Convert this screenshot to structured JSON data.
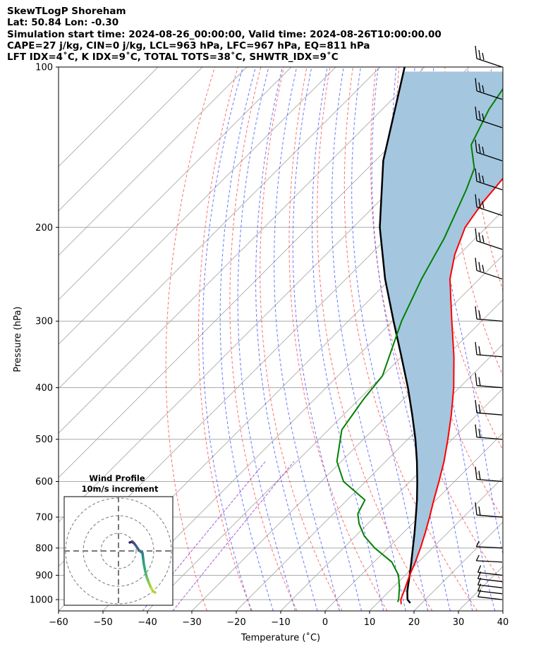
{
  "header": {
    "line1": "SkewTLogP Shoreham",
    "line2": "Lat: 50.84   Lon: -0.30",
    "line3": "Simulation start time: 2024-08-26_00:00:00, Valid time: 2024-08-26T10:00:00.00",
    "line4": "CAPE=27 j/kg, CIN=0 j/kg, LCL=963 hPa, LFC=967 hPa, EQ=811 hPa",
    "line5": "LFT IDX=4˚C, K IDX=9˚C, TOTAL TOTS=38˚C, SHWTR_IDX=9˚C"
  },
  "chart_data": {
    "type": "line",
    "xlabel": "Temperature (˚C)",
    "ylabel": "Pressure (hPa)",
    "xlim": [
      -60,
      40
    ],
    "ylim": [
      1050,
      100
    ],
    "yscale": "log",
    "skew_deg": 45,
    "x_ticks": [
      -60,
      -50,
      -40,
      -30,
      -20,
      -10,
      0,
      10,
      20,
      30,
      40
    ],
    "y_ticks": [
      1000,
      900,
      800,
      700,
      600,
      500,
      400,
      300,
      200,
      100
    ],
    "grid": true,
    "colors": {
      "temperature": "#ff0000",
      "dewpoint": "#008000",
      "parcel": "#000000",
      "cape_fill": "#a4c6df",
      "dry_adiabats": "#ff4040",
      "moist_adiabats": "#3a4cff",
      "mixing_ratio": "#9a40d0",
      "isotherms": "#aaaaaa"
    },
    "series": [
      {
        "key": "temperature",
        "p": [
          1020,
          1000,
          950,
          900,
          850,
          800,
          750,
          700,
          650,
          600,
          550,
          500,
          450,
          400,
          350,
          300,
          250,
          225,
          200,
          180,
          160,
          140,
          120,
          100
        ],
        "t": [
          15.6,
          14.5,
          12.8,
          11.0,
          9.3,
          7.3,
          5.0,
          2.4,
          -0.5,
          -3.5,
          -6.9,
          -11.0,
          -15.7,
          -21.3,
          -28.2,
          -36.7,
          -46.6,
          -51.0,
          -54.8,
          -56.4,
          -57.4,
          -58.0,
          -60.0,
          -62.7
        ]
      },
      {
        "key": "dewpoint",
        "p": [
          1010,
          1000,
          950,
          900,
          850,
          800,
          760,
          720,
          690,
          650,
          600,
          550,
          480,
          420,
          380,
          300,
          250,
          210,
          170,
          155,
          140,
          120,
          100
        ],
        "t": [
          14.3,
          14.0,
          11.5,
          8.5,
          4.0,
          -3.0,
          -8.0,
          -12.0,
          -14.5,
          -16.0,
          -25.0,
          -31.0,
          -37.0,
          -39.0,
          -40.0,
          -48.0,
          -53.0,
          -57.0,
          -63.0,
          -66.0,
          -72.0,
          -76.0,
          -79.0
        ]
      },
      {
        "key": "parcel",
        "p": [
          1015,
          1000,
          967,
          950,
          900,
          850,
          800,
          750,
          700,
          650,
          600,
          550,
          500,
          450,
          400,
          350,
          300,
          250,
          200,
          150,
          100
        ],
        "t": [
          17.4,
          16.0,
          14.2,
          13.4,
          11.0,
          8.4,
          5.6,
          2.6,
          -0.7,
          -4.3,
          -8.4,
          -13.0,
          -18.3,
          -24.5,
          -31.6,
          -40.0,
          -49.8,
          -61.2,
          -74.0,
          -88.2,
          -104.5
        ]
      }
    ],
    "wind_profile": {
      "title": "Wind Profile",
      "subtitle": "10m/s increment"
    }
  }
}
